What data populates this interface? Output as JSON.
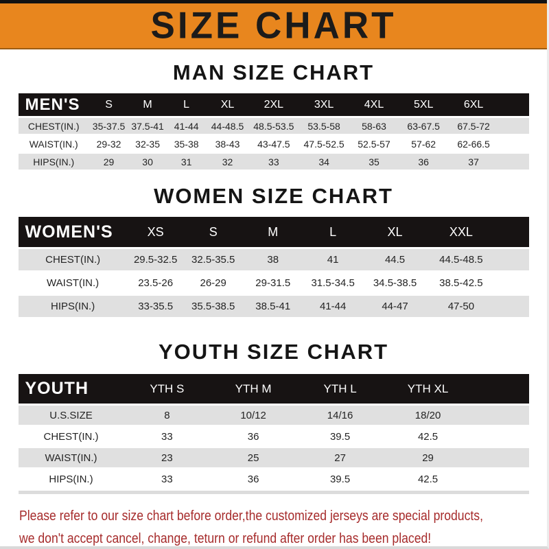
{
  "banner": {
    "title": "SIZE CHART"
  },
  "sections": [
    {
      "id": "men",
      "title": "MAN SIZE CHART",
      "corner_label": "MEN'S",
      "size_columns": [
        "S",
        "M",
        "L",
        "XL",
        "2XL",
        "3XL",
        "4XL",
        "5XL",
        "6XL"
      ],
      "rows": [
        {
          "label": "CHEST(IN.)",
          "values": [
            "35-37.5",
            "37.5-41",
            "41-44",
            "44-48.5",
            "48.5-53.5",
            "53.5-58",
            "58-63",
            "63-67.5",
            "67.5-72"
          ]
        },
        {
          "label": "WAIST(IN.)",
          "values": [
            "29-32",
            "32-35",
            "35-38",
            "38-43",
            "43-47.5",
            "47.5-52.5",
            "52.5-57",
            "57-62",
            "62-66.5"
          ]
        },
        {
          "label": "HIPS(IN.)",
          "values": [
            "29",
            "30",
            "31",
            "32",
            "33",
            "34",
            "35",
            "36",
            "37"
          ]
        }
      ]
    },
    {
      "id": "women",
      "title": "WOMEN SIZE CHART",
      "corner_label": "WOMEN'S",
      "size_columns": [
        "XS",
        "S",
        "M",
        "L",
        "XL",
        "XXL"
      ],
      "rows": [
        {
          "label": "CHEST(IN.)",
          "values": [
            "29.5-32.5",
            "32.5-35.5",
            "38",
            "41",
            "44.5",
            "44.5-48.5"
          ]
        },
        {
          "label": "WAIST(IN.)",
          "values": [
            "23.5-26",
            "26-29",
            "29-31.5",
            "31.5-34.5",
            "34.5-38.5",
            "38.5-42.5"
          ]
        },
        {
          "label": "HIPS(IN.)",
          "values": [
            "33-35.5",
            "35.5-38.5",
            "38.5-41",
            "41-44",
            "44-47",
            "47-50"
          ]
        }
      ]
    },
    {
      "id": "youth",
      "title": "YOUTH SIZE CHART",
      "corner_label": "YOUTH",
      "size_columns": [
        "YTH S",
        "YTH M",
        "YTH L",
        "YTH XL"
      ],
      "rows": [
        {
          "label": "U.S.SIZE",
          "values": [
            "8",
            "10/12",
            "14/16",
            "18/20"
          ]
        },
        {
          "label": "CHEST(IN.)",
          "values": [
            "33",
            "36",
            "39.5",
            "42.5"
          ]
        },
        {
          "label": "WAIST(IN.)",
          "values": [
            "23",
            "25",
            "27",
            "29"
          ]
        },
        {
          "label": "HIPS(IN.)",
          "values": [
            "33",
            "36",
            "39.5",
            "42.5"
          ]
        }
      ]
    }
  ],
  "footer": {
    "lines": [
      "Please refer to our size chart before order,the customized jerseys are special products,",
      "we don't accept cancel, change, teturn or refund after order has been placed!"
    ]
  },
  "colors": {
    "banner_orange": "#E8861E",
    "header_black": "#171313",
    "stripe_gray": "#E0E0E0",
    "footer_red": "#A62B2B"
  }
}
